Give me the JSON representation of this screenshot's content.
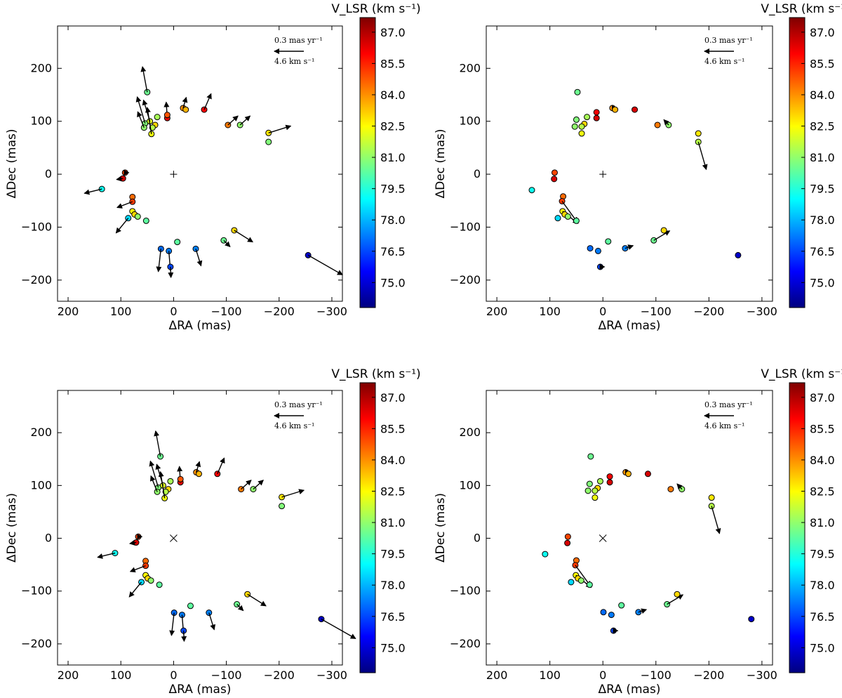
{
  "colormap": [
    "#00007f",
    "#0000ff",
    "#007fff",
    "#00ffff",
    "#7fff7f",
    "#ffff00",
    "#ff7f00",
    "#ff0000",
    "#7f0000"
  ],
  "axes": {
    "xlabel": "ΔRA (mas)",
    "ylabel": "ΔDec (mas)",
    "xlim": [
      220,
      -320
    ],
    "ylim": [
      -240,
      280
    ],
    "xticks": [
      200,
      100,
      0,
      -100,
      -200,
      -300
    ],
    "yticks": [
      -200,
      -100,
      0,
      100,
      200
    ],
    "xtick_labels": [
      "200",
      "100",
      "0",
      "−100",
      "−200",
      "−300"
    ],
    "ytick_labels": [
      "−200",
      "−100",
      "0",
      "100",
      "200"
    ]
  },
  "colorbar": {
    "title": "V_LSR (km s⁻¹)",
    "range": [
      73.8,
      87.7
    ],
    "ticks": [
      75.0,
      76.5,
      78.0,
      79.5,
      81.0,
      82.5,
      84.0,
      85.5,
      87.0
    ],
    "tick_labels": [
      "75.0",
      "76.5",
      "78.0",
      "79.5",
      "81.0",
      "82.5",
      "84.0",
      "85.5",
      "87.0"
    ]
  },
  "key": {
    "line1": "0.3 mas yr⁻¹",
    "line2": "4.6 km s⁻¹"
  },
  "chart_data": [
    {
      "type": "scatter",
      "center_marker": "plus",
      "x_offset": 0,
      "y_offset": 0,
      "points": [
        {
          "x": 50,
          "y": 155,
          "v": 80.5,
          "dx": 9,
          "dy": 48
        },
        {
          "x": -58,
          "y": 122,
          "v": 86.0,
          "dx": -13,
          "dy": 30
        },
        {
          "x": -18,
          "y": 125,
          "v": 84.0,
          "dx": -6,
          "dy": 20
        },
        {
          "x": -23,
          "y": 122,
          "v": 83.5,
          "dx": 0,
          "dy": 0
        },
        {
          "x": 12,
          "y": 106,
          "v": 86.3,
          "dx": 2,
          "dy": 30
        },
        {
          "x": 12,
          "y": 112,
          "v": 84.8,
          "dx": 0,
          "dy": 0
        },
        {
          "x": 31,
          "y": 108,
          "v": 81.3,
          "dx": 0,
          "dy": 0
        },
        {
          "x": 54,
          "y": 96,
          "v": 80.8,
          "dx": 15,
          "dy": 50
        },
        {
          "x": 45,
          "y": 100,
          "v": 82.0,
          "dx": 12,
          "dy": 40
        },
        {
          "x": 35,
          "y": 93,
          "v": 83.0,
          "dx": 0,
          "dy": 0
        },
        {
          "x": 40,
          "y": 88,
          "v": 81.5,
          "dx": 0,
          "dy": 0
        },
        {
          "x": 56,
          "y": 88,
          "v": 81.0,
          "dx": 12,
          "dy": 30
        },
        {
          "x": 42,
          "y": 76,
          "v": 82.3,
          "dx": 8,
          "dy": 50
        },
        {
          "x": -103,
          "y": 93,
          "v": 84.3,
          "dx": -19,
          "dy": 17
        },
        {
          "x": -126,
          "y": 93,
          "v": 81.0,
          "dx": -19,
          "dy": 17
        },
        {
          "x": -180,
          "y": 78,
          "v": 82.8,
          "dx": -42,
          "dy": 13
        },
        {
          "x": -180,
          "y": 61,
          "v": 80.8,
          "dx": 0,
          "dy": 0
        },
        {
          "x": 92,
          "y": 3,
          "v": 85.0,
          "dx": -7,
          "dy": 0
        },
        {
          "x": 96,
          "y": -8,
          "v": 86.5,
          "dx": 12,
          "dy": -2
        },
        {
          "x": 136,
          "y": -28,
          "v": 79.2,
          "dx": 33,
          "dy": -8
        },
        {
          "x": 78,
          "y": -43,
          "v": 84.5,
          "dx": 0,
          "dy": 0
        },
        {
          "x": 78,
          "y": -52,
          "v": 85.2,
          "dx": 29,
          "dy": -11
        },
        {
          "x": 78,
          "y": -70,
          "v": 82.5,
          "dx": 0,
          "dy": 0
        },
        {
          "x": 74,
          "y": -76,
          "v": 83.0,
          "dx": 0,
          "dy": 0
        },
        {
          "x": 68,
          "y": -80,
          "v": 81.0,
          "dx": 0,
          "dy": 0
        },
        {
          "x": 86,
          "y": -83,
          "v": 78.5,
          "dx": 23,
          "dy": -28
        },
        {
          "x": 52,
          "y": -88,
          "v": 80.3,
          "dx": 0,
          "dy": 0
        },
        {
          "x": -7,
          "y": -128,
          "v": 80.3,
          "dx": 0,
          "dy": 0
        },
        {
          "x": -95,
          "y": -125,
          "v": 80.5,
          "dx": -12,
          "dy": -12
        },
        {
          "x": -115,
          "y": -106,
          "v": 83.0,
          "dx": -35,
          "dy": -22
        },
        {
          "x": 24,
          "y": -141,
          "v": 77.0,
          "dx": 5,
          "dy": -43
        },
        {
          "x": 9,
          "y": -145,
          "v": 77.2,
          "dx": -3,
          "dy": -37
        },
        {
          "x": -42,
          "y": -141,
          "v": 77.3,
          "dx": -10,
          "dy": -32
        },
        {
          "x": 6,
          "y": -175,
          "v": 76.5,
          "dx": -1,
          "dy": -20
        },
        {
          "x": -255,
          "y": -153,
          "v": 74.8,
          "dx": -65,
          "dy": -37
        }
      ]
    },
    {
      "type": "scatter",
      "center_marker": "plus",
      "x_offset": 0,
      "y_offset": 0,
      "points": [
        {
          "x": 48,
          "y": 155,
          "v": 80.5,
          "dx": 0,
          "dy": 0
        },
        {
          "x": -60,
          "y": 122,
          "v": 86.5,
          "dx": 0,
          "dy": 0
        },
        {
          "x": -18,
          "y": 125,
          "v": 84.0,
          "dx": -8,
          "dy": 0
        },
        {
          "x": -23,
          "y": 122,
          "v": 83.5,
          "dx": 0,
          "dy": 0
        },
        {
          "x": 12,
          "y": 106,
          "v": 86.5,
          "dx": 0,
          "dy": 0
        },
        {
          "x": 12,
          "y": 117,
          "v": 86.0,
          "dx": 0,
          "dy": 0
        },
        {
          "x": 30,
          "y": 108,
          "v": 81.3,
          "dx": 0,
          "dy": 0
        },
        {
          "x": 50,
          "y": 103,
          "v": 80.8,
          "dx": 0,
          "dy": 0
        },
        {
          "x": 35,
          "y": 95,
          "v": 83.0,
          "dx": 0,
          "dy": 0
        },
        {
          "x": 40,
          "y": 90,
          "v": 81.5,
          "dx": 0,
          "dy": 0
        },
        {
          "x": 53,
          "y": 90,
          "v": 81.0,
          "dx": 0,
          "dy": 0
        },
        {
          "x": 40,
          "y": 77,
          "v": 82.3,
          "dx": 0,
          "dy": 0
        },
        {
          "x": -103,
          "y": 93,
          "v": 84.3,
          "dx": 0,
          "dy": 0
        },
        {
          "x": -124,
          "y": 93,
          "v": 81.0,
          "dx": 9,
          "dy": 10
        },
        {
          "x": -180,
          "y": 77,
          "v": 82.8,
          "dx": 0,
          "dy": 0
        },
        {
          "x": -180,
          "y": 61,
          "v": 81.5,
          "dx": -15,
          "dy": -52
        },
        {
          "x": 91,
          "y": 3,
          "v": 85.0,
          "dx": 0,
          "dy": 0
        },
        {
          "x": 92,
          "y": -9,
          "v": 86.5,
          "dx": 0,
          "dy": 0
        },
        {
          "x": 134,
          "y": -30,
          "v": 79.2,
          "dx": 0,
          "dy": 0
        },
        {
          "x": 75,
          "y": -42,
          "v": 84.5,
          "dx": 0,
          "dy": 0
        },
        {
          "x": 77,
          "y": -51,
          "v": 85.2,
          "dx": -29,
          "dy": -40
        },
        {
          "x": 76,
          "y": -70,
          "v": 82.5,
          "dx": -29,
          "dy": -23
        },
        {
          "x": 72,
          "y": -76,
          "v": 83.0,
          "dx": 0,
          "dy": 0
        },
        {
          "x": 66,
          "y": -80,
          "v": 81.0,
          "dx": 0,
          "dy": 0
        },
        {
          "x": 85,
          "y": -83,
          "v": 78.5,
          "dx": 0,
          "dy": 0
        },
        {
          "x": 50,
          "y": -88,
          "v": 80.3,
          "dx": 0,
          "dy": 0
        },
        {
          "x": -10,
          "y": -127,
          "v": 80.3,
          "dx": 0,
          "dy": 0
        },
        {
          "x": -96,
          "y": -125,
          "v": 80.5,
          "dx": -30,
          "dy": 18
        },
        {
          "x": -115,
          "y": -106,
          "v": 83.0,
          "dx": 0,
          "dy": 0
        },
        {
          "x": 24,
          "y": -140,
          "v": 77.0,
          "dx": 0,
          "dy": 0
        },
        {
          "x": 9,
          "y": -145,
          "v": 77.2,
          "dx": 0,
          "dy": 0
        },
        {
          "x": -42,
          "y": -140,
          "v": 77.3,
          "dx": -15,
          "dy": 5
        },
        {
          "x": 5,
          "y": -175,
          "v": 76.5,
          "dx": -8,
          "dy": 0
        },
        {
          "x": -255,
          "y": -153,
          "v": 74.8,
          "dx": 0,
          "dy": 0
        }
      ]
    },
    {
      "type": "scatter",
      "center_marker": "x",
      "x_offset": -25,
      "y_offset": 0,
      "points": [
        {
          "x": 50,
          "y": 155,
          "v": 80.5,
          "dx": 9,
          "dy": 48
        },
        {
          "x": -58,
          "y": 122,
          "v": 86.0,
          "dx": -13,
          "dy": 30
        },
        {
          "x": -18,
          "y": 125,
          "v": 84.0,
          "dx": -6,
          "dy": 20
        },
        {
          "x": -23,
          "y": 122,
          "v": 83.5,
          "dx": 0,
          "dy": 0
        },
        {
          "x": 12,
          "y": 106,
          "v": 86.3,
          "dx": 2,
          "dy": 30
        },
        {
          "x": 12,
          "y": 112,
          "v": 84.8,
          "dx": 0,
          "dy": 0
        },
        {
          "x": 31,
          "y": 108,
          "v": 81.3,
          "dx": 0,
          "dy": 0
        },
        {
          "x": 54,
          "y": 96,
          "v": 80.8,
          "dx": 15,
          "dy": 50
        },
        {
          "x": 45,
          "y": 100,
          "v": 82.0,
          "dx": 12,
          "dy": 40
        },
        {
          "x": 35,
          "y": 93,
          "v": 83.0,
          "dx": 0,
          "dy": 0
        },
        {
          "x": 40,
          "y": 88,
          "v": 81.5,
          "dx": 0,
          "dy": 0
        },
        {
          "x": 56,
          "y": 88,
          "v": 81.0,
          "dx": 12,
          "dy": 30
        },
        {
          "x": 42,
          "y": 76,
          "v": 82.3,
          "dx": 8,
          "dy": 50
        },
        {
          "x": -103,
          "y": 93,
          "v": 84.3,
          "dx": -19,
          "dy": 17
        },
        {
          "x": -126,
          "y": 93,
          "v": 81.0,
          "dx": -19,
          "dy": 17
        },
        {
          "x": -180,
          "y": 78,
          "v": 82.8,
          "dx": -42,
          "dy": 13
        },
        {
          "x": -180,
          "y": 61,
          "v": 80.8,
          "dx": 0,
          "dy": 0
        },
        {
          "x": 92,
          "y": 3,
          "v": 85.0,
          "dx": -7,
          "dy": 0
        },
        {
          "x": 96,
          "y": -8,
          "v": 86.5,
          "dx": 12,
          "dy": -2
        },
        {
          "x": 136,
          "y": -28,
          "v": 79.2,
          "dx": 33,
          "dy": -8
        },
        {
          "x": 78,
          "y": -43,
          "v": 84.5,
          "dx": 0,
          "dy": 0
        },
        {
          "x": 78,
          "y": -52,
          "v": 85.2,
          "dx": 29,
          "dy": -11
        },
        {
          "x": 78,
          "y": -70,
          "v": 82.5,
          "dx": 0,
          "dy": 0
        },
        {
          "x": 74,
          "y": -76,
          "v": 83.0,
          "dx": 0,
          "dy": 0
        },
        {
          "x": 68,
          "y": -80,
          "v": 81.0,
          "dx": 0,
          "dy": 0
        },
        {
          "x": 86,
          "y": -83,
          "v": 78.5,
          "dx": 23,
          "dy": -28
        },
        {
          "x": 52,
          "y": -88,
          "v": 80.3,
          "dx": 0,
          "dy": 0
        },
        {
          "x": -7,
          "y": -128,
          "v": 80.3,
          "dx": 0,
          "dy": 0
        },
        {
          "x": -95,
          "y": -125,
          "v": 80.5,
          "dx": -12,
          "dy": -12
        },
        {
          "x": -115,
          "y": -106,
          "v": 83.0,
          "dx": -35,
          "dy": -22
        },
        {
          "x": 24,
          "y": -141,
          "v": 77.0,
          "dx": 5,
          "dy": -43
        },
        {
          "x": 9,
          "y": -145,
          "v": 77.2,
          "dx": -3,
          "dy": -37
        },
        {
          "x": -42,
          "y": -141,
          "v": 77.3,
          "dx": -10,
          "dy": -32
        },
        {
          "x": 6,
          "y": -175,
          "v": 76.5,
          "dx": -1,
          "dy": -20
        },
        {
          "x": -255,
          "y": -153,
          "v": 74.8,
          "dx": -65,
          "dy": -37
        }
      ]
    },
    {
      "type": "scatter",
      "center_marker": "x",
      "x_offset": -25,
      "y_offset": 0,
      "points": [
        {
          "x": 48,
          "y": 155,
          "v": 80.5,
          "dx": 0,
          "dy": 0
        },
        {
          "x": -60,
          "y": 122,
          "v": 86.5,
          "dx": 0,
          "dy": 0
        },
        {
          "x": -18,
          "y": 125,
          "v": 84.0,
          "dx": -8,
          "dy": 0
        },
        {
          "x": -23,
          "y": 122,
          "v": 83.5,
          "dx": 0,
          "dy": 0
        },
        {
          "x": 12,
          "y": 106,
          "v": 86.5,
          "dx": 0,
          "dy": 0
        },
        {
          "x": 12,
          "y": 117,
          "v": 86.0,
          "dx": 0,
          "dy": 0
        },
        {
          "x": 30,
          "y": 108,
          "v": 81.3,
          "dx": 0,
          "dy": 0
        },
        {
          "x": 50,
          "y": 103,
          "v": 80.8,
          "dx": 0,
          "dy": 0
        },
        {
          "x": 35,
          "y": 95,
          "v": 83.0,
          "dx": 0,
          "dy": 0
        },
        {
          "x": 40,
          "y": 90,
          "v": 81.5,
          "dx": 0,
          "dy": 0
        },
        {
          "x": 53,
          "y": 90,
          "v": 81.0,
          "dx": 0,
          "dy": 0
        },
        {
          "x": 40,
          "y": 77,
          "v": 82.3,
          "dx": 0,
          "dy": 0
        },
        {
          "x": -103,
          "y": 93,
          "v": 84.3,
          "dx": 0,
          "dy": 0
        },
        {
          "x": -124,
          "y": 93,
          "v": 81.0,
          "dx": 9,
          "dy": 10
        },
        {
          "x": -180,
          "y": 77,
          "v": 82.8,
          "dx": 0,
          "dy": 0
        },
        {
          "x": -180,
          "y": 61,
          "v": 81.5,
          "dx": -15,
          "dy": -52
        },
        {
          "x": 91,
          "y": 3,
          "v": 85.0,
          "dx": 0,
          "dy": 0
        },
        {
          "x": 92,
          "y": -9,
          "v": 86.5,
          "dx": 0,
          "dy": 0
        },
        {
          "x": 134,
          "y": -30,
          "v": 79.2,
          "dx": 0,
          "dy": 0
        },
        {
          "x": 75,
          "y": -42,
          "v": 84.5,
          "dx": 0,
          "dy": 0
        },
        {
          "x": 77,
          "y": -51,
          "v": 85.2,
          "dx": -29,
          "dy": -40
        },
        {
          "x": 76,
          "y": -70,
          "v": 82.5,
          "dx": -29,
          "dy": -23
        },
        {
          "x": 72,
          "y": -76,
          "v": 83.0,
          "dx": 0,
          "dy": 0
        },
        {
          "x": 66,
          "y": -80,
          "v": 81.0,
          "dx": 0,
          "dy": 0
        },
        {
          "x": 85,
          "y": -83,
          "v": 78.5,
          "dx": 0,
          "dy": 0
        },
        {
          "x": 50,
          "y": -88,
          "v": 80.3,
          "dx": 0,
          "dy": 0
        },
        {
          "x": -10,
          "y": -127,
          "v": 80.3,
          "dx": 0,
          "dy": 0
        },
        {
          "x": -96,
          "y": -125,
          "v": 80.5,
          "dx": -30,
          "dy": 18
        },
        {
          "x": -115,
          "y": -106,
          "v": 83.0,
          "dx": 0,
          "dy": 0
        },
        {
          "x": 24,
          "y": -140,
          "v": 77.0,
          "dx": 0,
          "dy": 0
        },
        {
          "x": 9,
          "y": -145,
          "v": 77.2,
          "dx": 0,
          "dy": 0
        },
        {
          "x": -42,
          "y": -140,
          "v": 77.3,
          "dx": -15,
          "dy": 5
        },
        {
          "x": 5,
          "y": -175,
          "v": 76.5,
          "dx": -8,
          "dy": 0
        },
        {
          "x": -255,
          "y": -153,
          "v": 74.8,
          "dx": 0,
          "dy": 0
        }
      ]
    }
  ]
}
